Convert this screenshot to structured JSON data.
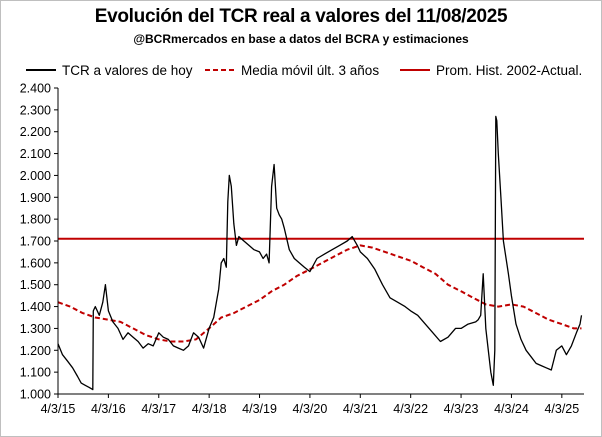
{
  "chart_data": {
    "type": "line",
    "title": "Evolución del TCR real a valores del 11/08/2025",
    "subtitle": "@BCRmercados  en base a datos del BCRA y estimaciones",
    "xlabel": "",
    "ylabel": "",
    "ylim": [
      1.0,
      2.4
    ],
    "y_tick_labels": [
      "1.000",
      "1.100",
      "1.200",
      "1.300",
      "1.400",
      "1.500",
      "1.600",
      "1.700",
      "1.800",
      "1.900",
      "2.000",
      "2.100",
      "2.200",
      "2.300",
      "2.400"
    ],
    "y_ticks": [
      1.0,
      1.1,
      1.2,
      1.3,
      1.4,
      1.5,
      1.6,
      1.7,
      1.8,
      1.9,
      2.0,
      2.1,
      2.2,
      2.3,
      2.4
    ],
    "xlim": [
      2015.26,
      2025.7
    ],
    "x_tick_labels": [
      "4/3/15",
      "4/3/16",
      "4/3/17",
      "4/3/18",
      "4/3/19",
      "4/3/20",
      "4/3/21",
      "4/3/22",
      "4/3/23",
      "4/3/24",
      "4/3/25"
    ],
    "x_ticks": [
      2015.26,
      2016.26,
      2017.26,
      2018.26,
      2019.26,
      2020.26,
      2021.26,
      2022.26,
      2023.26,
      2024.26,
      2025.26
    ],
    "legend_position": "top",
    "grid": false,
    "series": [
      {
        "name": "TCR a valores de hoy",
        "color": "#000000",
        "style": "solid",
        "x": [
          2015.26,
          2015.35,
          2015.45,
          2015.55,
          2015.65,
          2015.72,
          2015.8,
          2015.88,
          2015.95,
          2015.96,
          2016.0,
          2016.08,
          2016.15,
          2016.2,
          2016.26,
          2016.35,
          2016.45,
          2016.55,
          2016.65,
          2016.75,
          2016.85,
          2016.95,
          2017.05,
          2017.15,
          2017.26,
          2017.35,
          2017.45,
          2017.55,
          2017.65,
          2017.75,
          2017.85,
          2017.95,
          2018.05,
          2018.15,
          2018.26,
          2018.35,
          2018.45,
          2018.5,
          2018.55,
          2018.6,
          2018.63,
          2018.66,
          2018.7,
          2018.75,
          2018.8,
          2018.85,
          2018.95,
          2019.05,
          2019.15,
          2019.26,
          2019.33,
          2019.4,
          2019.45,
          2019.5,
          2019.55,
          2019.6,
          2019.65,
          2019.7,
          2019.75,
          2019.85,
          2019.95,
          2020.05,
          2020.15,
          2020.26,
          2020.4,
          2020.55,
          2020.7,
          2020.85,
          2021.0,
          2021.1,
          2021.2,
          2021.26,
          2021.4,
          2021.55,
          2021.7,
          2021.85,
          2022.0,
          2022.15,
          2022.26,
          2022.4,
          2022.55,
          2022.7,
          2022.85,
          2023.0,
          2023.15,
          2023.26,
          2023.4,
          2023.55,
          2023.6,
          2023.65,
          2023.7,
          2023.75,
          2023.8,
          2023.85,
          2023.9,
          2023.93,
          2023.95,
          2023.97,
          2024.0,
          2024.05,
          2024.1,
          2024.2,
          2024.26,
          2024.35,
          2024.45,
          2024.55,
          2024.65,
          2024.75,
          2024.85,
          2024.95,
          2025.05,
          2025.15,
          2025.26,
          2025.35,
          2025.45,
          2025.55,
          2025.62,
          2025.65
        ],
        "y": [
          1.23,
          1.18,
          1.15,
          1.12,
          1.08,
          1.05,
          1.04,
          1.03,
          1.02,
          1.38,
          1.4,
          1.36,
          1.42,
          1.5,
          1.38,
          1.33,
          1.3,
          1.25,
          1.28,
          1.26,
          1.24,
          1.21,
          1.23,
          1.22,
          1.28,
          1.26,
          1.25,
          1.22,
          1.21,
          1.2,
          1.22,
          1.28,
          1.26,
          1.21,
          1.3,
          1.35,
          1.48,
          1.6,
          1.62,
          1.58,
          1.88,
          2.0,
          1.95,
          1.78,
          1.68,
          1.72,
          1.7,
          1.68,
          1.66,
          1.65,
          1.62,
          1.64,
          1.6,
          1.95,
          2.05,
          1.85,
          1.82,
          1.8,
          1.76,
          1.66,
          1.62,
          1.6,
          1.58,
          1.56,
          1.62,
          1.64,
          1.66,
          1.68,
          1.7,
          1.72,
          1.68,
          1.65,
          1.62,
          1.57,
          1.5,
          1.44,
          1.42,
          1.4,
          1.38,
          1.36,
          1.32,
          1.28,
          1.24,
          1.26,
          1.3,
          1.3,
          1.32,
          1.33,
          1.34,
          1.36,
          1.55,
          1.3,
          1.2,
          1.1,
          1.04,
          1.2,
          2.27,
          2.25,
          2.1,
          1.9,
          1.7,
          1.55,
          1.45,
          1.32,
          1.25,
          1.2,
          1.17,
          1.14,
          1.13,
          1.12,
          1.11,
          1.2,
          1.22,
          1.18,
          1.22,
          1.28,
          1.32,
          1.36
        ]
      },
      {
        "name": "Media móvil últ. 3 años",
        "color": "#c00000",
        "style": "dashed",
        "x": [
          2015.26,
          2015.5,
          2015.75,
          2016.0,
          2016.26,
          2016.5,
          2016.75,
          2017.0,
          2017.26,
          2017.5,
          2017.75,
          2018.0,
          2018.26,
          2018.5,
          2018.75,
          2019.0,
          2019.26,
          2019.5,
          2019.75,
          2020.0,
          2020.26,
          2020.5,
          2020.75,
          2021.0,
          2021.26,
          2021.5,
          2021.75,
          2022.0,
          2022.26,
          2022.5,
          2022.75,
          2023.0,
          2023.26,
          2023.5,
          2023.75,
          2024.0,
          2024.26,
          2024.5,
          2024.75,
          2025.0,
          2025.26,
          2025.5,
          2025.65
        ],
        "y": [
          1.42,
          1.4,
          1.37,
          1.35,
          1.34,
          1.33,
          1.3,
          1.27,
          1.25,
          1.24,
          1.24,
          1.25,
          1.3,
          1.35,
          1.37,
          1.4,
          1.43,
          1.47,
          1.5,
          1.54,
          1.57,
          1.6,
          1.63,
          1.66,
          1.68,
          1.67,
          1.65,
          1.63,
          1.61,
          1.58,
          1.55,
          1.5,
          1.47,
          1.44,
          1.41,
          1.4,
          1.41,
          1.4,
          1.37,
          1.34,
          1.32,
          1.3,
          1.3
        ]
      },
      {
        "name": "Prom. Hist. 2002-Actual.",
        "color": "#c00000",
        "style": "solid",
        "x": [
          2015.26,
          2025.7
        ],
        "y": [
          1.71,
          1.71
        ]
      }
    ]
  }
}
